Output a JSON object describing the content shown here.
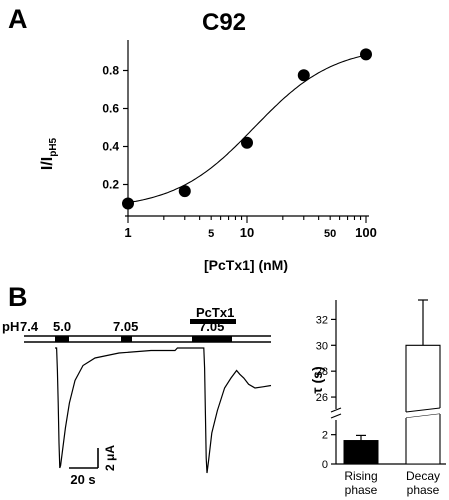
{
  "panels": {
    "a_label": "A",
    "b_label": "B"
  },
  "chart_data": [
    {
      "type": "scatter",
      "title": "C92",
      "xlabel": "[PcTx1] (nM)",
      "ylabel_main": "I/I",
      "ylabel_sub": "pH5",
      "xscale": "log",
      "xlim": [
        1,
        100
      ],
      "ylim": [
        0.05,
        0.95
      ],
      "xticks": [
        {
          "value": 1,
          "label": "1",
          "major": true
        },
        {
          "value": 5,
          "label": "5",
          "major": false
        },
        {
          "value": 10,
          "label": "10",
          "major": true
        },
        {
          "value": 50,
          "label": "50",
          "major": false
        },
        {
          "value": 100,
          "label": "100",
          "major": true
        }
      ],
      "yticks": [
        {
          "value": 0.2,
          "label": "0.2"
        },
        {
          "value": 0.4,
          "label": "0.4"
        },
        {
          "value": 0.6,
          "label": "0.6"
        },
        {
          "value": 0.8,
          "label": "0.8"
        }
      ],
      "points": [
        {
          "x": 1,
          "y": 0.1
        },
        {
          "x": 3,
          "y": 0.165
        },
        {
          "x": 10,
          "y": 0.42
        },
        {
          "x": 30,
          "y": 0.775
        },
        {
          "x": 100,
          "y": 0.885
        }
      ],
      "fit": {
        "bottom": 0.07,
        "top": 0.93,
        "ic50_nM": 11.5,
        "hill": 1.3
      },
      "color": "#000000"
    },
    {
      "type": "line",
      "description_free": true,
      "ph_label": "pH",
      "ph_values": [
        "7.4",
        "5.0",
        "7.05",
        "7.05"
      ],
      "toxin_label": "PcTx1",
      "scale_current": "2 μA",
      "scale_time": "20 s",
      "trace": [
        [
          0,
          0
        ],
        [
          2,
          0
        ],
        [
          3,
          -9
        ],
        [
          4,
          -22
        ],
        [
          5,
          -38
        ],
        [
          6,
          -48
        ],
        [
          7,
          -47
        ],
        [
          9,
          -42
        ],
        [
          13,
          -32
        ],
        [
          18,
          -22
        ],
        [
          25,
          -13
        ],
        [
          35,
          -7
        ],
        [
          50,
          -4
        ],
        [
          80,
          -2
        ],
        [
          120,
          -1
        ],
        [
          150,
          -1
        ],
        [
          153,
          0
        ],
        [
          186,
          0
        ],
        [
          187,
          -8
        ],
        [
          188,
          -26
        ],
        [
          189,
          -44
        ],
        [
          190,
          -50
        ],
        [
          192,
          -45
        ],
        [
          196,
          -34
        ],
        [
          203,
          -25
        ],
        [
          212,
          -16
        ],
        [
          220,
          -12
        ],
        [
          227,
          -9
        ],
        [
          231,
          -10.5
        ],
        [
          236,
          -12
        ],
        [
          242,
          -14.5
        ],
        [
          250,
          -16
        ],
        [
          260,
          -15.5
        ],
        [
          270,
          -15
        ]
      ]
    },
    {
      "type": "bar",
      "ylabel": "τ (s)",
      "categories": [
        {
          "line1": "Rising",
          "line2": "phase"
        },
        {
          "line1": "Decay",
          "line2": "phase"
        }
      ],
      "values": [
        1.6,
        30
      ],
      "errors": [
        0.35,
        3.5
      ],
      "fills": [
        "#000000",
        "#ffffff"
      ],
      "axis_break": [
        3,
        25
      ],
      "lower_ylim": [
        0,
        3
      ],
      "upper_ylim": [
        25,
        33.5
      ],
      "lower_yticks": [
        "0",
        "2"
      ],
      "upper_yticks": [
        "26",
        "28",
        "30",
        "32"
      ]
    }
  ]
}
